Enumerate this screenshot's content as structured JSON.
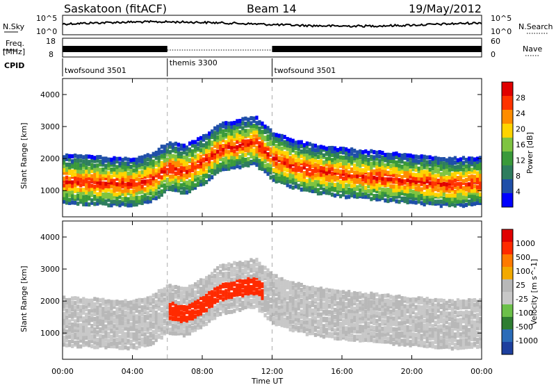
{
  "header": {
    "title": "Saskatoon (fitACF)",
    "beam": "Beam 14",
    "date": "19/May/2012"
  },
  "colors": {
    "power_scale": [
      "#0000ff",
      "#1f4fa8",
      "#2e7d5e",
      "#3a9a3a",
      "#7fc441",
      "#ffd400",
      "#ff8c00",
      "#ff3300",
      "#e00000"
    ],
    "velocity_scale": [
      "#1d3f9e",
      "#2b6cb8",
      "#2e7d32",
      "#6cc04a",
      "#c8c8c8",
      "#b8b8b8",
      "#f2a900",
      "#ff7a00",
      "#ff2a00",
      "#e00000"
    ]
  },
  "chart_data": [
    {
      "type": "line",
      "panel": "noise",
      "left_label": "N.Sky",
      "right_label": "N.Search",
      "left_ticks": [
        "10^5",
        "10^0"
      ],
      "right_ticks": [
        "10^5",
        "10^0"
      ]
    },
    {
      "type": "line",
      "panel": "frequency",
      "left_label_top": "Freq.",
      "left_label_bottom": "[MHz]",
      "right_label": "Nave",
      "left_ticks": [
        18,
        8
      ],
      "right_ticks": [
        60,
        0
      ]
    },
    {
      "type": "table",
      "panel": "cpid",
      "label": "CPID",
      "segments": [
        {
          "name": "twofsound 3501",
          "start": 0,
          "end": 6
        },
        {
          "name": "themis 3300",
          "start": 6,
          "end": 12
        },
        {
          "name": "twofsound 3501",
          "start": 12,
          "end": 24
        }
      ]
    },
    {
      "type": "heatmap",
      "panel": "power",
      "ylabel": "Slant Range [km]",
      "colorbar_label": "Power [dB]",
      "colorbar_ticks": [
        28,
        24,
        20,
        16,
        12,
        8,
        4
      ],
      "ylim": [
        180,
        4500
      ],
      "yticks": [
        1000,
        2000,
        3000,
        4000
      ],
      "xlim": [
        0,
        24
      ],
      "grid": false,
      "main_band": [
        {
          "x": 0,
          "y": 1300
        },
        {
          "x": 2,
          "y": 1250
        },
        {
          "x": 4,
          "y": 1200
        },
        {
          "x": 5,
          "y": 1350
        },
        {
          "x": 6,
          "y": 1700
        },
        {
          "x": 7,
          "y": 1600
        },
        {
          "x": 8,
          "y": 1900
        },
        {
          "x": 9,
          "y": 2300
        },
        {
          "x": 10,
          "y": 2400
        },
        {
          "x": 11,
          "y": 2500
        },
        {
          "x": 12,
          "y": 2000
        },
        {
          "x": 13,
          "y": 1800
        },
        {
          "x": 14,
          "y": 1650
        },
        {
          "x": 16,
          "y": 1500
        },
        {
          "x": 18,
          "y": 1400
        },
        {
          "x": 20,
          "y": 1300
        },
        {
          "x": 22,
          "y": 1200
        },
        {
          "x": 24,
          "y": 1250
        }
      ]
    },
    {
      "type": "heatmap",
      "panel": "velocity",
      "ylabel": "Slant Range [km]",
      "xlabel": "Time UT",
      "colorbar_label": "Velocity [m s^-1]",
      "colorbar_ticks": [
        1000,
        500,
        100,
        25,
        -25,
        -100,
        -500,
        -1000
      ],
      "ylim": [
        180,
        4500
      ],
      "yticks": [
        1000,
        2000,
        3000,
        4000
      ],
      "xlim": [
        0,
        24
      ],
      "xticks": [
        "00:00",
        "04:00",
        "08:00",
        "12:00",
        "16:00",
        "20:00",
        "00:00"
      ],
      "grid": false
    }
  ]
}
